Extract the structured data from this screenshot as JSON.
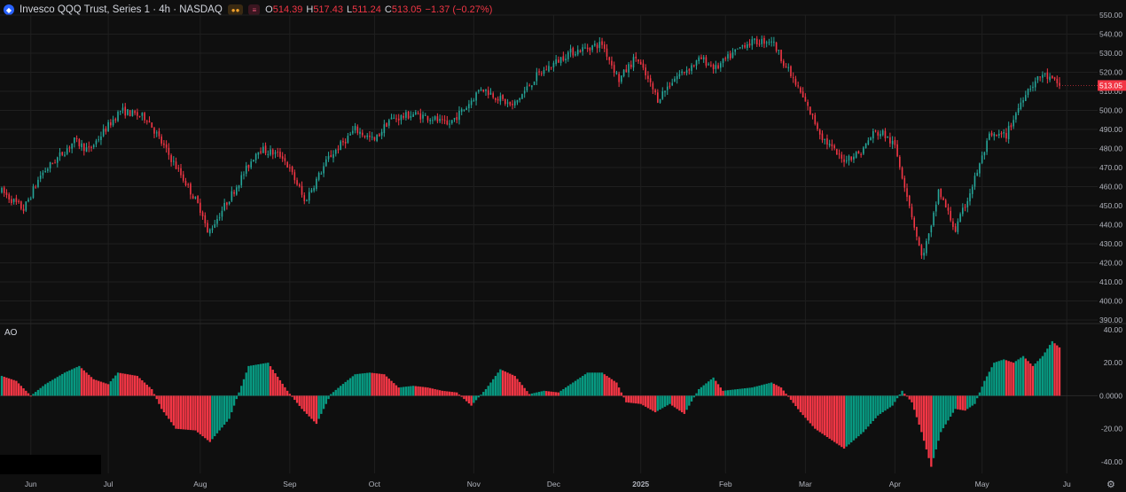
{
  "header": {
    "symbol_icon": "circle-logo-icon",
    "title": "Invesco QQQ Trust, Series 1 · 4h · NASDAQ",
    "chip_a_icon": "pair-dots-icon",
    "chip_b_icon": "bars-icon",
    "ohlc": {
      "o_label": "O",
      "o_value": "514.39",
      "h_label": "H",
      "h_value": "517.43",
      "l_label": "L",
      "l_value": "511.24",
      "c_label": "C",
      "c_value": "513.05",
      "change": "−1.37 (−0.27%)"
    }
  },
  "colors": {
    "up": "#26a69a",
    "down": "#f23645",
    "ao_up": "#089981",
    "ao_down": "#f23645",
    "price_badge": "#f23645",
    "grid": "#1f1f1f"
  },
  "last_price_label": "513.05",
  "settings_icon": "gear-icon",
  "chart_data": [
    {
      "type": "candlestick",
      "title": "Invesco QQQ Trust, Series 1 · 4h · NASDAQ",
      "ylim": [
        390,
        550
      ],
      "y_ticks": [
        "550.00",
        "540.00",
        "530.00",
        "520.00",
        "510.00",
        "500.00",
        "490.00",
        "480.00",
        "470.00",
        "460.00",
        "450.00",
        "440.00",
        "430.00",
        "420.00",
        "410.00",
        "400.00",
        "390.00"
      ],
      "x_ticks": [
        {
          "label": "Jun",
          "idx": 12
        },
        {
          "label": "Jul",
          "idx": 44
        },
        {
          "label": "Aug",
          "idx": 82
        },
        {
          "label": "Sep",
          "idx": 119
        },
        {
          "label": "Oct",
          "idx": 154
        },
        {
          "label": "Nov",
          "idx": 195
        },
        {
          "label": "Dec",
          "idx": 228
        },
        {
          "label": "2025",
          "idx": 264
        },
        {
          "label": "Feb",
          "idx": 299
        },
        {
          "label": "Mar",
          "idx": 332
        },
        {
          "label": "Apr",
          "idx": 369
        },
        {
          "label": "May",
          "idx": 405
        },
        {
          "label": "Ju",
          "idx": 440
        }
      ],
      "anchors": [
        [
          0,
          457.5
        ],
        [
          9,
          448
        ],
        [
          16,
          466
        ],
        [
          30,
          484
        ],
        [
          36,
          479
        ],
        [
          49,
          500
        ],
        [
          60,
          496
        ],
        [
          66,
          483
        ],
        [
          76,
          462
        ],
        [
          83,
          446
        ],
        [
          85,
          435
        ],
        [
          95,
          456
        ],
        [
          106,
          480
        ],
        [
          116,
          476
        ],
        [
          123,
          459
        ],
        [
          125,
          452
        ],
        [
          135,
          475
        ],
        [
          146,
          490
        ],
        [
          154,
          484
        ],
        [
          160,
          495
        ],
        [
          170,
          498
        ],
        [
          178,
          496
        ],
        [
          184,
          492
        ],
        [
          192,
          502
        ],
        [
          198,
          512
        ],
        [
          211,
          502
        ],
        [
          221,
          518
        ],
        [
          234,
          530
        ],
        [
          248,
          535
        ],
        [
          255,
          516
        ],
        [
          262,
          528
        ],
        [
          271,
          506
        ],
        [
          278,
          517
        ],
        [
          289,
          527
        ],
        [
          295,
          522
        ],
        [
          307,
          535
        ],
        [
          318,
          537
        ],
        [
          330,
          509
        ],
        [
          339,
          486
        ],
        [
          347,
          474
        ],
        [
          355,
          478
        ],
        [
          360,
          488
        ],
        [
          364,
          488
        ],
        [
          369,
          481
        ],
        [
          374,
          456
        ],
        [
          380,
          423
        ],
        [
          384,
          438
        ],
        [
          387,
          458
        ],
        [
          394,
          437
        ],
        [
          400,
          457
        ],
        [
          408,
          486
        ],
        [
          415,
          487
        ],
        [
          423,
          510
        ],
        [
          430,
          519
        ],
        [
          437,
          513.05
        ]
      ],
      "ohlc_last": {
        "open": 514.39,
        "high": 517.43,
        "low": 511.24,
        "close": 513.05
      }
    },
    {
      "type": "bar",
      "name": "AO",
      "ylim": [
        -47,
        41
      ],
      "y_ticks": [
        "40.00",
        "20.00",
        "0.0000",
        "-20.00",
        "-40.00"
      ],
      "anchors": [
        [
          0,
          12
        ],
        [
          6,
          9
        ],
        [
          12,
          0
        ],
        [
          18,
          7
        ],
        [
          26,
          14
        ],
        [
          32,
          18
        ],
        [
          38,
          10
        ],
        [
          44,
          7
        ],
        [
          48,
          14
        ],
        [
          56,
          12
        ],
        [
          62,
          4
        ],
        [
          66,
          -8
        ],
        [
          72,
          -20
        ],
        [
          80,
          -21
        ],
        [
          86,
          -28
        ],
        [
          94,
          -14
        ],
        [
          102,
          18
        ],
        [
          110,
          20
        ],
        [
          118,
          3
        ],
        [
          124,
          -8
        ],
        [
          130,
          -17
        ],
        [
          136,
          1
        ],
        [
          140,
          6
        ],
        [
          146,
          13
        ],
        [
          152,
          14
        ],
        [
          158,
          13
        ],
        [
          164,
          5
        ],
        [
          170,
          6
        ],
        [
          176,
          5
        ],
        [
          182,
          3
        ],
        [
          188,
          2
        ],
        [
          194,
          -6
        ],
        [
          200,
          4
        ],
        [
          206,
          16
        ],
        [
          212,
          12
        ],
        [
          218,
          1
        ],
        [
          224,
          3
        ],
        [
          230,
          2
        ],
        [
          236,
          8
        ],
        [
          242,
          14
        ],
        [
          248,
          14
        ],
        [
          254,
          8
        ],
        [
          258,
          -4
        ],
        [
          264,
          -5
        ],
        [
          270,
          -10
        ],
        [
          276,
          -5
        ],
        [
          282,
          -11
        ],
        [
          288,
          4
        ],
        [
          294,
          11
        ],
        [
          298,
          3
        ],
        [
          304,
          4
        ],
        [
          310,
          5
        ],
        [
          318,
          8
        ],
        [
          322,
          5
        ],
        [
          330,
          -10
        ],
        [
          336,
          -20
        ],
        [
          342,
          -26
        ],
        [
          348,
          -32
        ],
        [
          356,
          -22
        ],
        [
          362,
          -12
        ],
        [
          368,
          -6
        ],
        [
          372,
          3
        ],
        [
          376,
          -4
        ],
        [
          380,
          -22
        ],
        [
          384,
          -43
        ],
        [
          388,
          -22
        ],
        [
          394,
          -8
        ],
        [
          398,
          -9
        ],
        [
          402,
          -5
        ],
        [
          406,
          9
        ],
        [
          410,
          20
        ],
        [
          414,
          22
        ],
        [
          418,
          20
        ],
        [
          422,
          24
        ],
        [
          426,
          18
        ],
        [
          430,
          24
        ],
        [
          434,
          33
        ],
        [
          438,
          28
        ],
        [
          441,
          21
        ]
      ]
    }
  ]
}
